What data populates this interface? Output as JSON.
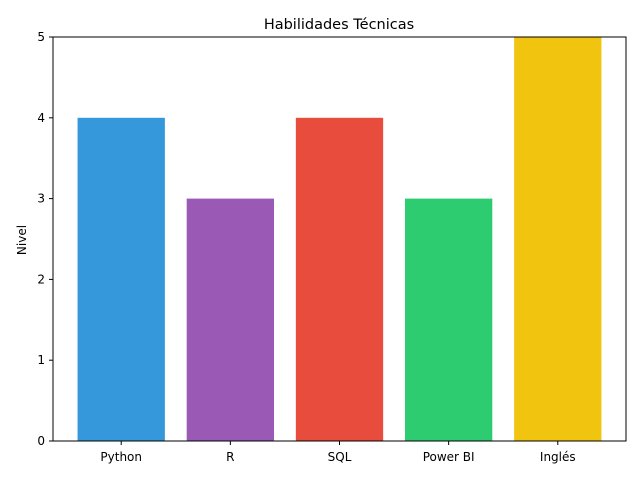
{
  "chart_data": {
    "type": "bar",
    "title": "Habilidades Técnicas",
    "xlabel": "",
    "ylabel": "Nivel",
    "categories": [
      "Python",
      "R",
      "SQL",
      "Power BI",
      "Inglés"
    ],
    "values": [
      4,
      3,
      4,
      3,
      5
    ],
    "colors": [
      "#3498db",
      "#9b59b6",
      "#e74c3c",
      "#2ecc71",
      "#f1c40f"
    ],
    "ylim": [
      0,
      5
    ],
    "yticks": [
      "0",
      "1",
      "2",
      "3",
      "4",
      "5"
    ],
    "grid": false,
    "legend": "none"
  }
}
